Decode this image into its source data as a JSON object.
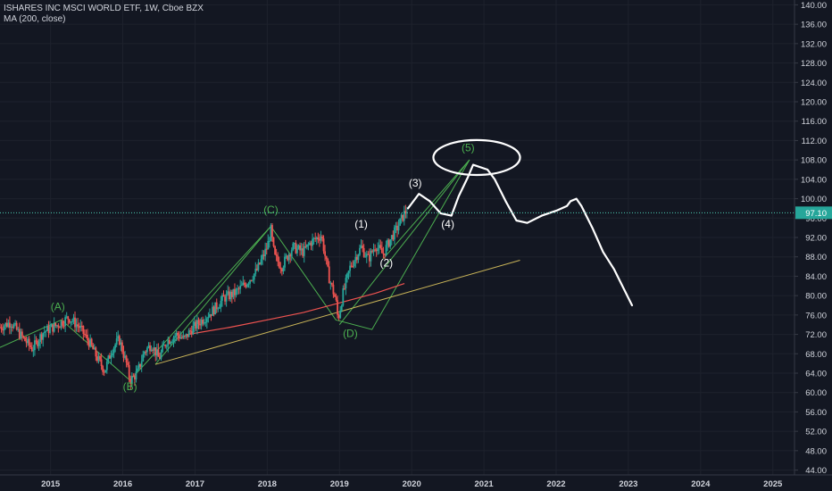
{
  "header": {
    "title": "ISHARES INC MSCI WORLD ETF, 1W, Cboe BZX",
    "indicator": "MA (200, close)"
  },
  "colors": {
    "background": "#131722",
    "grid": "#1e222d",
    "text": "#d1d4dc",
    "candle_up": "#26a69a",
    "candle_down": "#ef5350",
    "ma": "#ef5350",
    "trendline": "#c9b458",
    "wave_lines": "#4caf50",
    "wave_labels_abc": "#4caf50",
    "sketch": "#ffffff",
    "price_tag": "#26a69a",
    "price_line": "#4dd0b4"
  },
  "chart_data": {
    "type": "candlestick",
    "title": "ISHARES INC MSCI WORLD ETF, 1W, Cboe BZX",
    "xlabel": "",
    "ylabel": "",
    "x_ticks": [
      "2015",
      "2016",
      "2017",
      "2018",
      "2019",
      "2020",
      "2021",
      "2022",
      "2023",
      "2024",
      "2025"
    ],
    "y_ticks": [
      "44.00",
      "48.00",
      "52.00",
      "56.00",
      "60.00",
      "64.00",
      "68.00",
      "72.00",
      "76.00",
      "80.00",
      "84.00",
      "88.00",
      "92.00",
      "96.00",
      "100.00",
      "104.00",
      "108.00",
      "112.00",
      "116.00",
      "120.00",
      "124.00",
      "128.00",
      "132.00",
      "136.00",
      "140.00"
    ],
    "ylim": [
      43,
      141
    ],
    "xlim": [
      2014.3,
      2025.3
    ],
    "last_price": "97.10",
    "last_price_value": 97.1,
    "price_path": [
      [
        2014.3,
        73.5
      ],
      [
        2014.45,
        74.5
      ],
      [
        2014.6,
        71.5
      ],
      [
        2014.75,
        69.0
      ],
      [
        2014.9,
        72.5
      ],
      [
        2015.1,
        74.0
      ],
      [
        2015.25,
        75.5
      ],
      [
        2015.4,
        73.5
      ],
      [
        2015.55,
        70.0
      ],
      [
        2015.65,
        67.0
      ],
      [
        2015.75,
        64.5
      ],
      [
        2015.85,
        69.0
      ],
      [
        2015.95,
        71.0
      ],
      [
        2016.05,
        66.0
      ],
      [
        2016.1,
        62.5
      ],
      [
        2016.2,
        64.0
      ],
      [
        2016.3,
        68.5
      ],
      [
        2016.4,
        70.0
      ],
      [
        2016.5,
        67.0
      ],
      [
        2016.6,
        70.5
      ],
      [
        2016.75,
        72.0
      ],
      [
        2016.85,
        71.0
      ],
      [
        2016.95,
        73.0
      ],
      [
        2017.1,
        75.0
      ],
      [
        2017.25,
        77.0
      ],
      [
        2017.4,
        79.5
      ],
      [
        2017.55,
        80.5
      ],
      [
        2017.7,
        82.5
      ],
      [
        2017.85,
        85.0
      ],
      [
        2018.0,
        90.0
      ],
      [
        2018.05,
        93.5
      ],
      [
        2018.1,
        88.0
      ],
      [
        2018.2,
        86.0
      ],
      [
        2018.35,
        90.0
      ],
      [
        2018.5,
        89.0
      ],
      [
        2018.6,
        91.0
      ],
      [
        2018.75,
        92.5
      ],
      [
        2018.85,
        84.0
      ],
      [
        2018.95,
        79.0
      ],
      [
        2018.98,
        75.0
      ],
      [
        2019.05,
        80.5
      ],
      [
        2019.15,
        86.0
      ],
      [
        2019.3,
        90.0
      ],
      [
        2019.4,
        87.5
      ],
      [
        2019.5,
        90.5
      ],
      [
        2019.6,
        88.5
      ],
      [
        2019.7,
        91.5
      ],
      [
        2019.8,
        94.0
      ],
      [
        2019.9,
        97.0
      ],
      [
        2019.95,
        98.0
      ]
    ],
    "ma200": [
      [
        2016.9,
        72.0
      ],
      [
        2017.5,
        73.5
      ],
      [
        2018.0,
        75.0
      ],
      [
        2018.5,
        76.5
      ],
      [
        2019.0,
        78.5
      ],
      [
        2019.5,
        80.5
      ],
      [
        2019.9,
        82.5
      ]
    ],
    "trendline": [
      [
        2016.45,
        65.8
      ],
      [
        2021.5,
        87.3
      ]
    ],
    "wave_path_abc": [
      [
        2014.3,
        69.3
      ],
      [
        2015.15,
        75.0
      ],
      [
        2016.1,
        62.5
      ],
      [
        2018.05,
        94.3
      ],
      [
        2018.95,
        75.0
      ],
      [
        2019.45,
        73.0
      ],
      [
        2020.8,
        108.0
      ]
    ],
    "wave_lines_extra": [
      [
        [
          2016.45,
          65.8
        ],
        [
          2018.05,
          94.3
        ]
      ],
      [
        [
          2019.0,
          74.0
        ],
        [
          2020.8,
          108.0
        ]
      ],
      [
        [
          2019.6,
          87.5
        ],
        [
          2020.8,
          108.0
        ]
      ]
    ],
    "annotations": [
      {
        "text": "(A)",
        "x": 2015.1,
        "y": 77.0,
        "color": "green"
      },
      {
        "text": "(B)",
        "x": 2016.1,
        "y": 60.5,
        "color": "green"
      },
      {
        "text": "(C)",
        "x": 2018.05,
        "y": 97.0,
        "color": "green"
      },
      {
        "text": "(D)",
        "x": 2019.15,
        "y": 71.5,
        "color": "green"
      },
      {
        "text": "(1)",
        "x": 2019.3,
        "y": 94.0,
        "color": "white"
      },
      {
        "text": "(2)",
        "x": 2019.65,
        "y": 86.0,
        "color": "white"
      },
      {
        "text": "(3)",
        "x": 2020.05,
        "y": 102.5,
        "color": "white"
      },
      {
        "text": "(4)",
        "x": 2020.5,
        "y": 94.0,
        "color": "white"
      },
      {
        "text": "(5)",
        "x": 2020.78,
        "y": 109.8,
        "color": "green"
      }
    ],
    "sketch_path": [
      [
        2019.95,
        98.0
      ],
      [
        2020.1,
        101.0
      ],
      [
        2020.25,
        99.5
      ],
      [
        2020.4,
        97.0
      ],
      [
        2020.55,
        96.5
      ],
      [
        2020.65,
        100.5
      ],
      [
        2020.78,
        104.5
      ],
      [
        2020.85,
        107.0
      ],
      [
        2021.05,
        106.0
      ],
      [
        2021.15,
        104.0
      ],
      [
        2021.3,
        99.5
      ],
      [
        2021.45,
        95.5
      ],
      [
        2021.6,
        95.0
      ],
      [
        2021.8,
        96.5
      ],
      [
        2022.0,
        97.5
      ],
      [
        2022.15,
        98.5
      ],
      [
        2022.2,
        99.5
      ],
      [
        2022.28,
        100.0
      ],
      [
        2022.35,
        98.5
      ],
      [
        2022.5,
        94.0
      ],
      [
        2022.65,
        89.0
      ],
      [
        2022.8,
        85.5
      ],
      [
        2022.95,
        81.0
      ],
      [
        2023.05,
        78.0
      ]
    ],
    "circle": {
      "cx": 2020.9,
      "cy": 108.5,
      "rx": 0.6,
      "ry": 3.6
    }
  }
}
